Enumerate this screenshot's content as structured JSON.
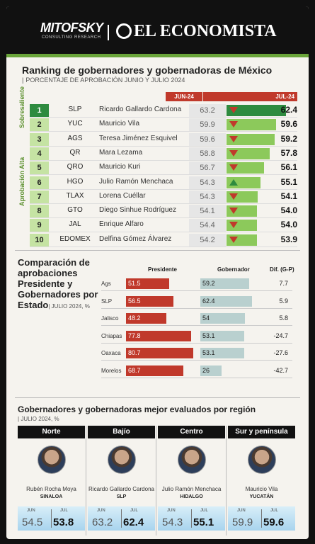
{
  "header": {
    "logo_left": "MITOFSKY",
    "logo_left_sub": "CONSULTING RESEARCH",
    "logo_right": "EL ECONOMISTA"
  },
  "ranking": {
    "title": "Ranking de gobernadores y gobernadoras de México",
    "subtitle": "PORCENTAJE DE APROBACIÓN JUNIO Y JULIO 2024",
    "col_jun": "JUN-24",
    "col_jul": "JUL-24",
    "group_top": "Sobresaliente",
    "group_rest": "Aprobación Alta",
    "rows": [
      {
        "rank": "1",
        "state": "SLP",
        "name": "Ricardo Gallardo Cardona",
        "jun": "63.2",
        "jul": "62.4",
        "trend": "down"
      },
      {
        "rank": "2",
        "state": "YUC",
        "name": "Mauricio Vila",
        "jun": "59.9",
        "jul": "59.6",
        "trend": "down"
      },
      {
        "rank": "3",
        "state": "AGS",
        "name": "Teresa Jiménez Esquivel",
        "jun": "59.6",
        "jul": "59.2",
        "trend": "down"
      },
      {
        "rank": "4",
        "state": "QR",
        "name": "Mara Lezama",
        "jun": "58.8",
        "jul": "57.8",
        "trend": "down"
      },
      {
        "rank": "5",
        "state": "QRO",
        "name": "Mauricio Kuri",
        "jun": "56.7",
        "jul": "56.1",
        "trend": "down"
      },
      {
        "rank": "6",
        "state": "HGO",
        "name": "Julio Ramón Menchaca",
        "jun": "54.3",
        "jul": "55.1",
        "trend": "up"
      },
      {
        "rank": "7",
        "state": "TLAX",
        "name": "Lorena Cuéllar",
        "jun": "54.3",
        "jul": "54.1",
        "trend": "down"
      },
      {
        "rank": "8",
        "state": "GTO",
        "name": "Diego Sinhue Rodríguez",
        "jun": "54.1",
        "jul": "54.0",
        "trend": "down"
      },
      {
        "rank": "9",
        "state": "JAL",
        "name": "Enrique Alfaro",
        "jun": "54.4",
        "jul": "54.0",
        "trend": "down"
      },
      {
        "rank": "10",
        "state": "EDOMEX",
        "name": "Delfina Gómez Álvarez",
        "jun": "54.2",
        "jul": "53.9",
        "trend": "down"
      }
    ]
  },
  "comparison": {
    "title_main": "Comparación de aprobaciones Presidente y Gobernadores por Estado",
    "title_sub": "JULIO 2024, %",
    "col_pres": "Presidente",
    "col_gov": "Gobernador",
    "col_dif": "Dif. (G-P)"
  },
  "chart_data": {
    "type": "bar",
    "categories": [
      "Ags",
      "SLP",
      "Jalisco",
      "Chiapas",
      "Oaxaca",
      "Morelos"
    ],
    "series": [
      {
        "name": "Presidente",
        "values": [
          51.5,
          56.5,
          48.2,
          77.8,
          80.7,
          68.7
        ]
      },
      {
        "name": "Gobernador",
        "values": [
          59.2,
          62.4,
          54,
          53.1,
          53.1,
          26
        ]
      }
    ],
    "dif": [
      "7.7",
      "5.9",
      "5.8",
      "-24.7",
      "-27.6",
      "-42.7"
    ],
    "pres_labels": [
      "51.5",
      "56.5",
      "48.2",
      "77.8",
      "80.7",
      "68.7"
    ],
    "gov_labels": [
      "59.2",
      "62.4",
      "54",
      "53.1",
      "53.1",
      "26"
    ],
    "colors": {
      "presidente": "#c0392b",
      "gobernador": "#b9d0cf"
    }
  },
  "regions": {
    "title": "Gobernadores y gobernadoras mejor evaluados por región",
    "subtitle": "JULIO 2024, %",
    "jun_label": "JUN",
    "jul_label": "JUL",
    "items": [
      {
        "region": "Norte",
        "name": "Rubén Rocha Moya",
        "state": "SINALOA",
        "jun": "54.5",
        "jul": "53.8"
      },
      {
        "region": "Bajío",
        "name": "Ricardo Gallardo Cardona",
        "state": "SLP",
        "jun": "63.2",
        "jul": "62.4"
      },
      {
        "region": "Centro",
        "name": "Julio Ramón Menchaca",
        "state": "HIDALGO",
        "jun": "54.3",
        "jul": "55.1"
      },
      {
        "region": "Sur y península",
        "name": "Mauricio Vila",
        "state": "YUCATÁN",
        "jun": "59.9",
        "jul": "59.6"
      }
    ]
  }
}
